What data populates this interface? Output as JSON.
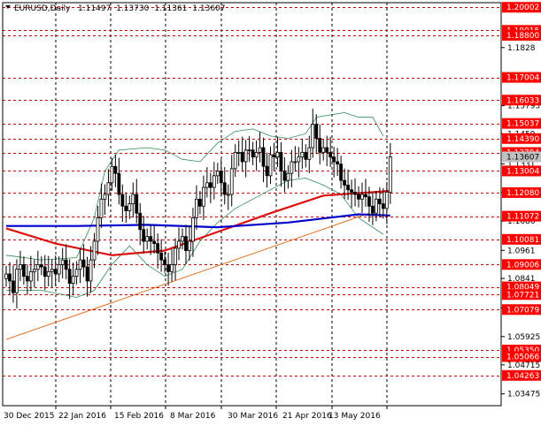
{
  "chart_data": {
    "type": "candlestick",
    "symbol": "EURUSD",
    "timeframe": "Daily",
    "ohlc_header": [
      "1.11497",
      "1.13730",
      "1.11361",
      "1.13607"
    ],
    "ylim": [
      1.0297,
      1.202
    ],
    "x_ticks": [
      "30 Dec 2015",
      "22 Jan 2016",
      "15 Feb 2016",
      "8 Mar 2016",
      "30 Mar 2016",
      "21 Apr 2016",
      "13 May 2016"
    ],
    "y_ticks": [
      1.1828,
      1.15795,
      1.1459,
      1.1331,
      1.1209,
      1.1086,
      1.0961,
      1.0841,
      1.0715,
      1.05925,
      1.04715,
      1.03475
    ],
    "level_labels": [
      {
        "label": "1.20002",
        "value": 1.20002
      },
      {
        "label": "1.19015",
        "value": 1.19015
      },
      {
        "label": "1.18800",
        "value": 1.188
      },
      {
        "label": "1.17004",
        "value": 1.17004
      },
      {
        "label": "1.16033",
        "value": 1.16033
      },
      {
        "label": "1.15037",
        "value": 1.15037
      },
      {
        "label": "1.14390",
        "value": 1.1439
      },
      {
        "label": "1.13794",
        "value": 1.13794
      },
      {
        "label": "1.13004",
        "value": 1.13004
      },
      {
        "label": "1.12080",
        "value": 1.1208
      },
      {
        "label": "1.11072",
        "value": 1.11072
      },
      {
        "label": "1.10081",
        "value": 1.10081
      },
      {
        "label": "1.09006",
        "value": 1.09006
      },
      {
        "label": "1.08049",
        "value": 1.08049
      },
      {
        "label": "1.07721",
        "value": 1.07721
      },
      {
        "label": "1.07079",
        "value": 1.07079
      },
      {
        "label": "1.05350",
        "value": 1.0535
      },
      {
        "label": "1.05066",
        "value": 1.05066
      },
      {
        "label": "1.04263",
        "value": 1.04263
      }
    ],
    "current_price": {
      "label": "1.13607",
      "value": 1.13607
    },
    "close_approx": [
      1.086,
      1.083,
      1.078,
      1.088,
      1.09,
      1.085,
      1.083,
      1.087,
      1.088,
      1.09,
      1.089,
      1.085,
      1.087,
      1.088,
      1.086,
      1.09,
      1.092,
      1.088,
      1.082,
      1.085,
      1.088,
      1.092,
      1.089,
      1.083,
      1.092,
      1.1,
      1.11,
      1.118,
      1.12,
      1.125,
      1.132,
      1.129,
      1.12,
      1.115,
      1.113,
      1.116,
      1.12,
      1.112,
      1.105,
      1.1,
      1.102,
      1.1,
      1.099,
      1.095,
      1.092,
      1.09,
      1.087,
      1.09,
      1.097,
      1.1,
      1.102,
      1.096,
      1.1,
      1.11,
      1.118,
      1.115,
      1.123,
      1.125,
      1.123,
      1.128,
      1.13,
      1.125,
      1.12,
      1.12,
      1.131,
      1.138,
      1.138,
      1.134,
      1.139,
      1.139,
      1.136,
      1.138,
      1.14,
      1.132,
      1.128,
      1.137,
      1.136,
      1.138,
      1.13,
      1.126,
      1.129,
      1.134,
      1.134,
      1.136,
      1.138,
      1.135,
      1.14,
      1.15,
      1.144,
      1.138,
      1.14,
      1.138,
      1.136,
      1.134,
      1.133,
      1.126,
      1.124,
      1.122,
      1.121,
      1.12,
      1.118,
      1.12,
      1.119,
      1.115,
      1.112,
      1.118,
      1.116,
      1.114,
      1.121,
      1.1361
    ],
    "ma_red": {
      "x": [
        0,
        14,
        30,
        45,
        60,
        75,
        90,
        109
      ],
      "y": [
        1.1055,
        1.099,
        1.094,
        1.096,
        1.104,
        1.112,
        1.1195,
        1.1215
      ]
    },
    "ma_blue": {
      "x": [
        0,
        20,
        40,
        60,
        80,
        100,
        109
      ],
      "y": [
        1.1065,
        1.1065,
        1.107,
        1.106,
        1.108,
        1.1115,
        1.111
      ]
    },
    "bollinger_upper": {
      "x": [
        0,
        10,
        20,
        25,
        28,
        32,
        40,
        45,
        50,
        55,
        60,
        65,
        70,
        75,
        80,
        85,
        88,
        92,
        96,
        100,
        104,
        107
      ],
      "y": [
        1.094,
        1.092,
        1.093,
        1.11,
        1.13,
        1.139,
        1.14,
        1.139,
        1.135,
        1.134,
        1.142,
        1.147,
        1.148,
        1.145,
        1.144,
        1.146,
        1.153,
        1.154,
        1.155,
        1.153,
        1.153,
        1.145
      ]
    },
    "bollinger_lower": {
      "x": [
        0,
        10,
        20,
        25,
        30,
        35,
        40,
        45,
        50,
        55,
        60,
        65,
        70,
        75,
        80,
        85,
        90,
        95,
        100,
        104,
        107
      ],
      "y": [
        1.079,
        1.079,
        1.076,
        1.079,
        1.09,
        1.098,
        1.09,
        1.085,
        1.088,
        1.1,
        1.108,
        1.114,
        1.118,
        1.122,
        1.126,
        1.127,
        1.124,
        1.12,
        1.11,
        1.106,
        1.103
      ]
    },
    "trendline": {
      "x": [
        0,
        103
      ],
      "y": [
        1.058,
        1.112
      ]
    }
  }
}
